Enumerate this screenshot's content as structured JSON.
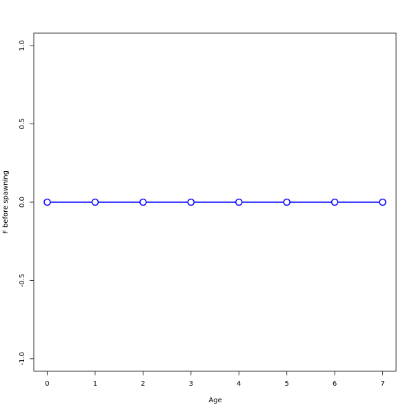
{
  "chart_data": {
    "type": "line",
    "title": "",
    "xlabel": "Age",
    "ylabel": "F before spawning",
    "x": [
      0,
      1,
      2,
      3,
      4,
      5,
      6,
      7
    ],
    "series": [
      {
        "values": [
          0,
          0,
          0,
          0,
          0,
          0,
          0,
          0
        ],
        "color": "#0000ff"
      }
    ],
    "xlim": [
      -0.28,
      7.28
    ],
    "ylim": [
      -1.08,
      1.08
    ],
    "xticks": [
      "0",
      "1",
      "2",
      "3",
      "4",
      "5",
      "6",
      "7"
    ],
    "yticks": [
      "-1.0",
      "-0.5",
      "0.0",
      "0.5",
      "1.0"
    ],
    "grid": false
  }
}
